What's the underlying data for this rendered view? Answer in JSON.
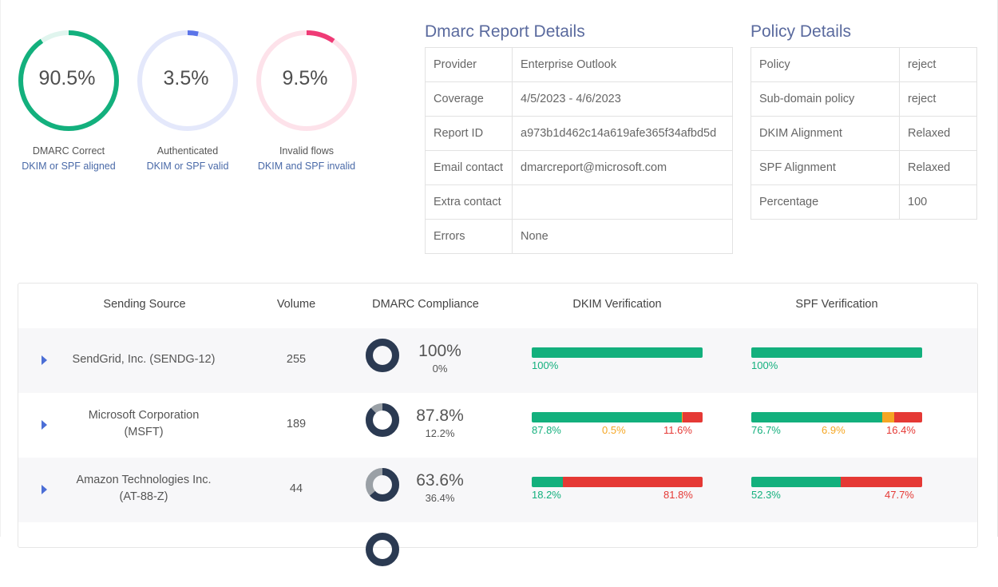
{
  "gauges": [
    {
      "value": "90.5%",
      "fraction": 0.905,
      "color": "#13b07d",
      "track": "#e0f5ee",
      "line1": "DMARC Correct",
      "line2": "DKIM or SPF aligned"
    },
    {
      "value": "3.5%",
      "fraction": 0.035,
      "color": "#5b74e8",
      "track": "#e4e8fb",
      "line1": "Authenticated",
      "line2": "DKIM or SPF valid"
    },
    {
      "value": "9.5%",
      "fraction": 0.095,
      "color": "#ef3b76",
      "track": "#fde2ea",
      "line1": "Invalid flows",
      "line2": "DKIM and SPF invalid"
    }
  ],
  "report": {
    "title": "Dmarc Report Details",
    "rows": [
      {
        "label": "Provider",
        "value": "Enterprise Outlook"
      },
      {
        "label": "Coverage",
        "value": "4/5/2023 - 4/6/2023"
      },
      {
        "label": "Report ID",
        "value": "a973b1d462c14a619afe365f34afbd5d"
      },
      {
        "label": "Email contact",
        "value": "dmarcreport@microsoft.com"
      },
      {
        "label": "Extra contact",
        "value": ""
      },
      {
        "label": "Errors",
        "value": "None"
      }
    ]
  },
  "policy": {
    "title": "Policy Details",
    "rows": [
      {
        "label": "Policy",
        "value": "reject"
      },
      {
        "label": "Sub-domain policy",
        "value": "reject"
      },
      {
        "label": "DKIM Alignment",
        "value": "Relaxed"
      },
      {
        "label": "SPF Alignment",
        "value": "Relaxed"
      },
      {
        "label": "Percentage",
        "value": "100"
      }
    ]
  },
  "table": {
    "headers": {
      "source": "Sending Source",
      "volume": "Volume",
      "compliance": "DMARC Compliance",
      "dkim": "DKIM Verification",
      "spf": "SPF Verification"
    },
    "colors": {
      "pass": "#13b07d",
      "partial": "#f5a623",
      "fail": "#e53935",
      "donut_main": "#2b3a52",
      "donut_rest": "#9aa0a6"
    },
    "rows": [
      {
        "source_line1": "SendGrid, Inc. (SENDG-12)",
        "source_line2": "",
        "volume": "255",
        "compliance": "100%",
        "noncompliance": "0%",
        "compliance_fraction": 1.0,
        "dkim": {
          "pass": 100,
          "partial": 0,
          "fail": 0,
          "labels": {
            "pass": "100%",
            "partial": "",
            "fail": ""
          }
        },
        "spf": {
          "pass": 100,
          "partial": 0,
          "fail": 0,
          "labels": {
            "pass": "100%",
            "partial": "",
            "fail": ""
          }
        }
      },
      {
        "source_line1": "Microsoft Corporation",
        "source_line2": "(MSFT)",
        "volume": "189",
        "compliance": "87.8%",
        "noncompliance": "12.2%",
        "compliance_fraction": 0.878,
        "dkim": {
          "pass": 87.8,
          "partial": 0.5,
          "fail": 11.6,
          "labels": {
            "pass": "87.8%",
            "partial": "0.5%",
            "fail": "11.6%"
          }
        },
        "spf": {
          "pass": 76.7,
          "partial": 6.9,
          "fail": 16.4,
          "labels": {
            "pass": "76.7%",
            "partial": "6.9%",
            "fail": "16.4%"
          }
        }
      },
      {
        "source_line1": "Amazon Technologies Inc.",
        "source_line2": "(AT-88-Z)",
        "volume": "44",
        "compliance": "63.6%",
        "noncompliance": "36.4%",
        "compliance_fraction": 0.636,
        "dkim": {
          "pass": 18.2,
          "partial": 0,
          "fail": 81.8,
          "labels": {
            "pass": "18.2%",
            "partial": "",
            "fail": "81.8%"
          }
        },
        "spf": {
          "pass": 52.3,
          "partial": 0,
          "fail": 47.7,
          "labels": {
            "pass": "52.3%",
            "partial": "",
            "fail": "47.7%"
          }
        }
      }
    ]
  }
}
